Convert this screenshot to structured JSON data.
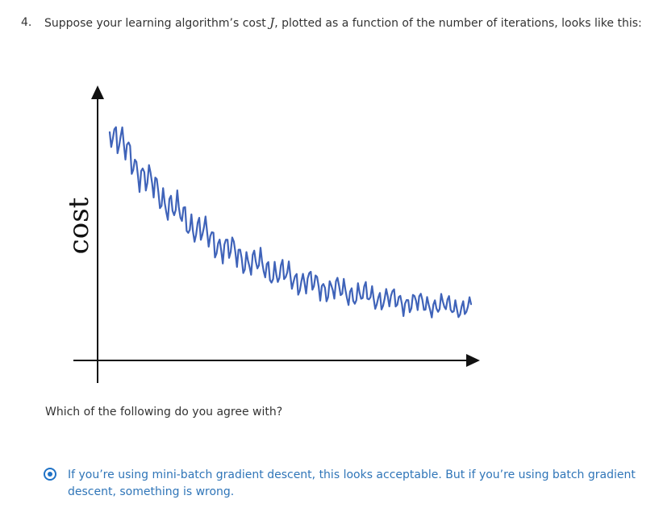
{
  "question": {
    "number": "4.",
    "text_before": "Suppose your learning algorithm’s cost ",
    "math_symbol": "J",
    "text_after": ", plotted as a function of the number of iterations, looks like this:"
  },
  "figure": {
    "y_axis_label": "cost",
    "colors": {
      "axes": "#111111",
      "curve": "#3f63b9"
    }
  },
  "prompt": "Which of the following do you agree with?",
  "answer_option": {
    "text": "If you’re using mini-batch gradient descent, this looks acceptable. But if you’re using batch gradient descent, something is wrong.",
    "selected": true,
    "color": "#2f75b8",
    "radio_icon": "radio-selected-icon"
  }
}
